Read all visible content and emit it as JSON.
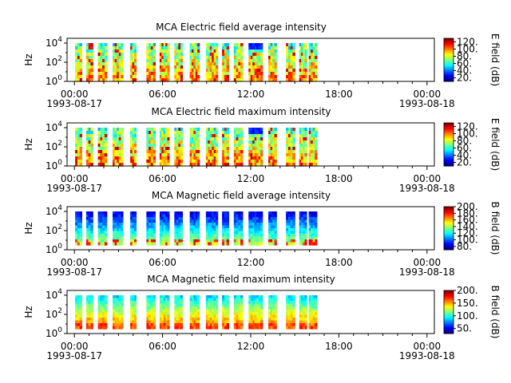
{
  "chart_data": [
    {
      "type": "heatmap",
      "title": "MCA  Electric field average intensity",
      "ylabel": "Hz",
      "yticks": [
        "10^4",
        "10^2",
        "10^0"
      ],
      "xticks": [
        {
          "time": "00:00",
          "date": "1993-08-17"
        },
        {
          "time": "06:00",
          "date": ""
        },
        {
          "time": "12:00",
          "date": ""
        },
        {
          "time": "18:00",
          "date": ""
        },
        {
          "time": "00:00",
          "date": "1993-08-18"
        }
      ],
      "colorbar": {
        "label": "E field (dB)",
        "ticks": [
          "120.",
          "100.",
          "80.",
          "60.",
          "40.",
          "20."
        ],
        "range": [
          10,
          130
        ]
      },
      "ylim_log10": [
        0,
        4.5
      ],
      "data_ylim_log10": [
        0,
        4
      ],
      "palette": "upper",
      "colormap": "jet"
    },
    {
      "type": "heatmap",
      "title": "MCA  Electric field maximum intensity",
      "ylabel": "Hz",
      "yticks": [
        "10^4",
        "10^2",
        "10^0"
      ],
      "xticks": [
        {
          "time": "00:00",
          "date": "1993-08-17"
        },
        {
          "time": "06:00",
          "date": ""
        },
        {
          "time": "12:00",
          "date": ""
        },
        {
          "time": "18:00",
          "date": ""
        },
        {
          "time": "00:00",
          "date": "1993-08-18"
        }
      ],
      "colorbar": {
        "label": "E field (dB)",
        "ticks": [
          "120.",
          "100.",
          "80.",
          "60.",
          "40.",
          "20."
        ],
        "range": [
          10,
          130
        ]
      },
      "ylim_log10": [
        0,
        4.5
      ],
      "data_ylim_log10": [
        0,
        4
      ],
      "palette": "upper",
      "colormap": "jet"
    },
    {
      "type": "heatmap",
      "title": "MCA  Magnetic field average intensity",
      "ylabel": "Hz",
      "yticks": [
        "10^4",
        "10^2",
        "10^0"
      ],
      "xticks": [
        {
          "time": "00:00",
          "date": "1993-08-17"
        },
        {
          "time": "06:00",
          "date": ""
        },
        {
          "time": "12:00",
          "date": ""
        },
        {
          "time": "18:00",
          "date": ""
        },
        {
          "time": "00:00",
          "date": "1993-08-18"
        }
      ],
      "colorbar": {
        "label": "B field (dB)",
        "ticks": [
          "200.",
          "180.",
          "160.",
          "140.",
          "120.",
          "100.",
          "80."
        ],
        "range": [
          70,
          200
        ]
      },
      "ylim_log10": [
        0,
        4.5
      ],
      "data_ylim_log10": [
        0.5,
        4
      ],
      "palette": "lower",
      "colormap": "jet"
    },
    {
      "type": "heatmap",
      "title": "MCA  Magnetic field maximum intensity",
      "ylabel": "Hz",
      "yticks": [
        "10^4",
        "10^2",
        "10^0"
      ],
      "xticks": [
        {
          "time": "00:00",
          "date": "1993-08-17"
        },
        {
          "time": "06:00",
          "date": ""
        },
        {
          "time": "12:00",
          "date": ""
        },
        {
          "time": "18:00",
          "date": ""
        },
        {
          "time": "00:00",
          "date": "1993-08-18"
        }
      ],
      "colorbar": {
        "label": "B field (dB)",
        "ticks": [
          "200.",
          "150.",
          "100.",
          "50."
        ],
        "range": [
          30,
          200
        ]
      },
      "ylim_log10": [
        0,
        4.5
      ],
      "data_ylim_log10": [
        0.5,
        4
      ],
      "palette": "lower",
      "colormap": "jet"
    }
  ],
  "data_segments_hours": [
    [
      0.05,
      0.5
    ],
    [
      0.8,
      1.25
    ],
    [
      1.6,
      2.2
    ],
    [
      2.6,
      3.3
    ],
    [
      3.8,
      4.2
    ],
    [
      4.9,
      5.5
    ],
    [
      5.8,
      6.45
    ],
    [
      6.8,
      7.35
    ],
    [
      7.85,
      8.5
    ],
    [
      8.95,
      9.75
    ],
    [
      10.05,
      10.5
    ],
    [
      10.85,
      11.45
    ],
    [
      11.85,
      12.8
    ],
    [
      13.2,
      13.75
    ],
    [
      14.4,
      15.0
    ],
    [
      15.3,
      15.8
    ],
    [
      15.95,
      16.5
    ]
  ],
  "x_range_hours": [
    -0.5,
    24.5
  ]
}
